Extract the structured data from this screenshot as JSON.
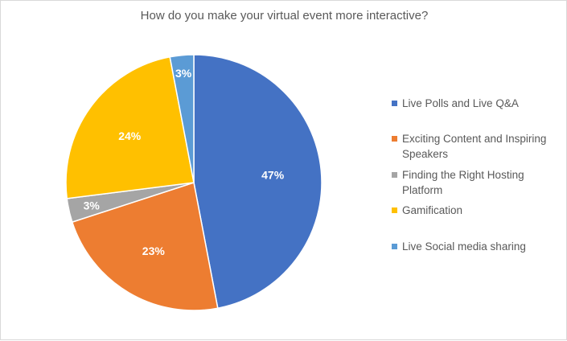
{
  "chart_data": {
    "type": "pie",
    "title": "How do you make your virtual event more interactive?",
    "categories": [
      "Live Polls and Live Q&A",
      "Exciting Content and Inspiring Speakers",
      "Finding the Right Hosting Platform",
      "Gamification",
      "Live Social media sharing"
    ],
    "values": [
      47,
      23,
      3,
      24,
      3
    ],
    "labels": [
      "47%",
      "23%",
      "3%",
      "24%",
      "3%"
    ],
    "colors": [
      "#4472c4",
      "#ed7d31",
      "#a5a5a5",
      "#ffc000",
      "#5b9bd5"
    ],
    "legend_position": "right",
    "start_angle": "12 o'clock, clockwise"
  },
  "legend": [
    {
      "label": "Live Polls and Live Q&A",
      "color": "#4472c4"
    },
    {
      "label": "Exciting Content and Inspiring Speakers",
      "color": "#ed7d31"
    },
    {
      "label": "Finding the Right Hosting Platform",
      "color": "#a5a5a5"
    },
    {
      "label": "Gamification",
      "color": "#ffc000"
    },
    {
      "label": "Live Social media sharing",
      "color": "#5b9bd5"
    }
  ]
}
